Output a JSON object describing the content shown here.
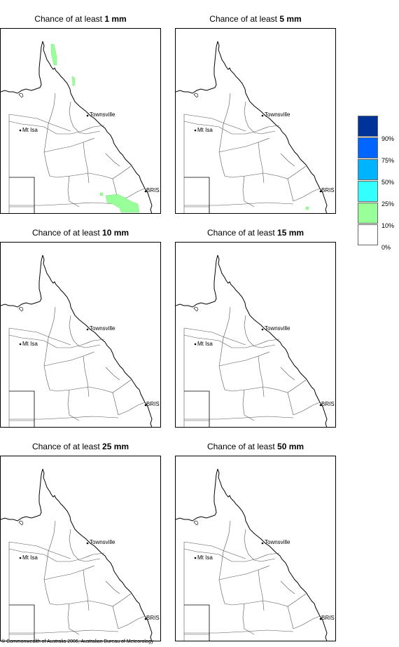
{
  "panels": [
    {
      "title_prefix": "Chance of at least ",
      "threshold": "1 mm"
    },
    {
      "title_prefix": "Chance of at least ",
      "threshold": "5 mm"
    },
    {
      "title_prefix": "Chance of at least ",
      "threshold": "10 mm"
    },
    {
      "title_prefix": "Chance of at least ",
      "threshold": "15 mm"
    },
    {
      "title_prefix": "Chance of at least ",
      "threshold": "25 mm"
    },
    {
      "title_prefix": "Chance of at least ",
      "threshold": "50 mm"
    }
  ],
  "places": {
    "townsville": "Townsville",
    "mt_isa": "Mt Isa",
    "brisbane": "BRIS"
  },
  "legend": {
    "labels": [
      "90%",
      "75%",
      "50%",
      "25%",
      "10%",
      "0%"
    ],
    "colors": [
      "#003399",
      "#0066ff",
      "#00b3ff",
      "#33ffff",
      "#99ff99",
      "#ffffff"
    ]
  },
  "copyright": "© Commonwealth of Australia 2006, Australian Bureau of Meteorology"
}
